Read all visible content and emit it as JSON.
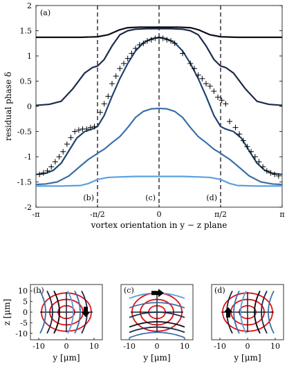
{
  "chart_data": [
    {
      "type": "line",
      "panel": "(a)",
      "xlabel": "vortex orientation in y − z plane",
      "ylabel": "residual phase δ",
      "xlim": [
        -3.14159,
        3.14159
      ],
      "ylim": [
        -2,
        2
      ],
      "xticks": [
        -3.14159,
        -1.5708,
        0,
        1.5708,
        3.14159
      ],
      "xtick_labels": [
        "-π",
        "-π/2",
        "0",
        "π/2",
        "π"
      ],
      "yticks": [
        -2,
        -1.5,
        -1,
        -0.5,
        0,
        0.5,
        1,
        1.5,
        2
      ],
      "ytick_labels": [
        "-2",
        "-1.5",
        "-1",
        "-0.5",
        "0",
        "0.5",
        "1",
        "1.5",
        "2"
      ],
      "grid": false,
      "vlines": [
        {
          "x": -1.5708,
          "label": "(b)"
        },
        {
          "x": 0,
          "label": "(c)"
        },
        {
          "x": 1.5708,
          "label": "(d)"
        }
      ],
      "series": [
        {
          "color": "#0b0b18",
          "x": [
            -3.1416,
            -2.5,
            -2.0,
            -1.5708,
            -1.3,
            -1.0,
            -0.8,
            -0.5,
            0,
            0.5,
            0.8,
            1.0,
            1.3,
            1.5708,
            2.0,
            2.5,
            3.1416
          ],
          "values": [
            1.37,
            1.37,
            1.37,
            1.38,
            1.42,
            1.52,
            1.56,
            1.57,
            1.57,
            1.57,
            1.56,
            1.52,
            1.42,
            1.38,
            1.37,
            1.37,
            1.37
          ]
        },
        {
          "color": "#1b2a4a",
          "x": [
            -3.1416,
            -2.8,
            -2.5,
            -2.2,
            -1.9,
            -1.7,
            -1.5708,
            -1.4,
            -1.2,
            -1.0,
            -0.8,
            -0.6,
            -0.3,
            0,
            0.3,
            0.6,
            0.8,
            1.0,
            1.2,
            1.4,
            1.5708,
            1.7,
            1.9,
            2.2,
            2.5,
            2.8,
            3.1416
          ],
          "values": [
            0.02,
            0.04,
            0.1,
            0.35,
            0.66,
            0.77,
            0.8,
            0.93,
            1.2,
            1.42,
            1.5,
            1.53,
            1.54,
            1.54,
            1.54,
            1.53,
            1.5,
            1.42,
            1.2,
            0.93,
            0.8,
            0.77,
            0.66,
            0.35,
            0.1,
            0.04,
            0.02
          ]
        },
        {
          "color": "#1e4470",
          "x": [
            -3.1416,
            -2.9,
            -2.7,
            -2.5,
            -2.3,
            -2.1,
            -1.9,
            -1.7,
            -1.5708,
            -1.4,
            -1.2,
            -1.0,
            -0.8,
            -0.6,
            -0.4,
            -0.2,
            0,
            0.2,
            0.4,
            0.6,
            0.8,
            1.0,
            1.2,
            1.4,
            1.5708,
            1.7,
            1.9,
            2.1,
            2.3,
            2.5,
            2.7,
            2.9,
            3.1416
          ],
          "values": [
            -1.35,
            -1.33,
            -1.27,
            -1.13,
            -0.88,
            -0.63,
            -0.5,
            -0.45,
            -0.4,
            -0.18,
            0.2,
            0.55,
            0.85,
            1.1,
            1.26,
            1.34,
            1.37,
            1.34,
            1.26,
            1.1,
            0.85,
            0.55,
            0.2,
            -0.18,
            -0.4,
            -0.45,
            -0.5,
            -0.63,
            -0.88,
            -1.13,
            -1.27,
            -1.33,
            -1.35
          ]
        },
        {
          "color": "#3a6fa8",
          "x": [
            -3.1416,
            -2.9,
            -2.6,
            -2.3,
            -2.0,
            -1.8,
            -1.6,
            -1.5708,
            -1.4,
            -1.2,
            -1.0,
            -0.8,
            -0.6,
            -0.4,
            -0.2,
            0,
            0.2,
            0.4,
            0.6,
            0.8,
            1.0,
            1.2,
            1.4,
            1.5708,
            1.6,
            1.8,
            2.0,
            2.3,
            2.6,
            2.9,
            3.1416
          ],
          "values": [
            -1.55,
            -1.54,
            -1.5,
            -1.38,
            -1.18,
            -1.05,
            -0.95,
            -0.93,
            -0.85,
            -0.72,
            -0.6,
            -0.42,
            -0.22,
            -0.1,
            -0.05,
            -0.04,
            -0.05,
            -0.1,
            -0.22,
            -0.42,
            -0.6,
            -0.72,
            -0.85,
            -0.93,
            -0.95,
            -1.05,
            -1.18,
            -1.38,
            -1.5,
            -1.54,
            -1.55
          ]
        },
        {
          "color": "#5aa0e0",
          "x": [
            -3.1416,
            -2.5,
            -2.0,
            -1.8,
            -1.5708,
            -1.3,
            -1.0,
            -0.6,
            0,
            0.6,
            1.0,
            1.3,
            1.5708,
            1.8,
            2.0,
            2.5,
            3.1416
          ],
          "values": [
            -1.58,
            -1.58,
            -1.57,
            -1.53,
            -1.45,
            -1.41,
            -1.4,
            -1.39,
            -1.39,
            -1.39,
            -1.4,
            -1.41,
            -1.45,
            -1.53,
            -1.57,
            -1.58,
            -1.58
          ]
        }
      ],
      "markers": {
        "symbol": "+",
        "x": [
          -3.05,
          -2.95,
          -2.85,
          -2.75,
          -2.65,
          -2.55,
          -2.45,
          -2.35,
          -2.25,
          -2.15,
          -2.05,
          -1.95,
          -1.85,
          -1.75,
          -1.65,
          -1.5,
          -1.4,
          -1.3,
          -1.2,
          -1.1,
          -1.0,
          -0.9,
          -0.8,
          -0.7,
          -0.6,
          -0.5,
          -0.4,
          -0.3,
          -0.2,
          -0.1,
          0.0,
          0.1,
          0.2,
          0.3,
          0.4,
          0.6,
          0.8,
          0.9,
          1.0,
          1.1,
          1.2,
          1.3,
          1.4,
          1.5,
          1.6,
          1.7,
          1.8,
          1.95,
          2.05,
          2.15,
          2.25,
          2.35,
          2.45,
          2.55,
          2.65,
          2.75,
          2.85,
          2.95,
          3.05
        ],
        "y": [
          -1.35,
          -1.32,
          -1.28,
          -1.2,
          -1.1,
          -1.0,
          -0.9,
          -0.75,
          -0.62,
          -0.5,
          -0.47,
          -0.45,
          -0.45,
          -0.42,
          -0.4,
          -0.12,
          0.05,
          0.2,
          0.45,
          0.6,
          0.75,
          0.85,
          0.95,
          1.05,
          1.15,
          1.22,
          1.25,
          1.3,
          1.32,
          1.35,
          1.36,
          1.35,
          1.32,
          1.3,
          1.25,
          1.05,
          0.85,
          0.75,
          0.62,
          0.55,
          0.45,
          0.4,
          0.3,
          0.18,
          0.12,
          0.05,
          -0.3,
          -0.42,
          -0.55,
          -0.68,
          -0.8,
          -0.9,
          -1.0,
          -1.1,
          -1.2,
          -1.28,
          -1.32,
          -1.35,
          -1.38
        ]
      }
    },
    {
      "type": "diagram",
      "panel": "(b)",
      "xlabel": "y [μm]",
      "ylabel": "z [μm]",
      "xticks": [
        "-10",
        "0",
        "10"
      ],
      "yticks": [
        "10",
        "5",
        "0",
        "-5",
        "-10"
      ],
      "arrow_direction": "down",
      "arc_orientation": "vertical"
    },
    {
      "type": "diagram",
      "panel": "(c)",
      "xlabel": "y [μm]",
      "xticks": [
        "-10",
        "0",
        "10"
      ],
      "arrow_direction": "right",
      "arc_orientation": "horizontal"
    },
    {
      "type": "diagram",
      "panel": "(d)",
      "xlabel": "y [μm]",
      "xticks": [
        "-10",
        "0",
        "10"
      ],
      "arrow_direction": "up",
      "arc_orientation": "vertical-mirrored"
    }
  ]
}
